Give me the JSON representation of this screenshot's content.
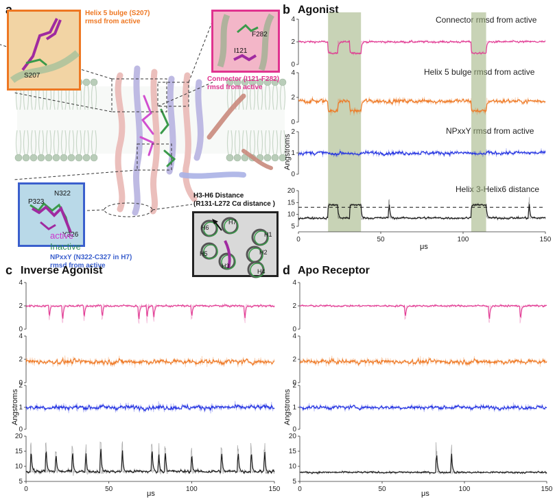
{
  "panel_a": {
    "letter": "a",
    "inset_helix5": {
      "title": "Helix 5 bulge (S207)",
      "subtitle": "rmsd from active",
      "residue": "S207",
      "color": "#ee7722"
    },
    "inset_connector": {
      "title": "Connector (I121-F282)",
      "subtitle": "rmsd from active",
      "res1": "F282",
      "res2": "I121",
      "color": "#e0338f"
    },
    "inset_npxxy": {
      "title": "NPxxY (N322-C327 in H7)",
      "subtitle": "rmsd from active",
      "res1": "P323",
      "res2": "N322",
      "res3": "Y326",
      "color": "#3a5fcd"
    },
    "inset_h3h6": {
      "title": "H3-H6 Distance",
      "subtitle": "(R131-L272 Cα distance )",
      "helices": [
        "H6",
        "H7",
        "H1",
        "H5",
        "H2",
        "H3",
        "H4"
      ]
    },
    "legend": {
      "active": "active",
      "inactive": "Inactive",
      "active_color": "#cc33cc",
      "inactive_color": "#2e8b57"
    }
  },
  "panel_b": {
    "letter": "b",
    "title": "Agonist",
    "labels": [
      "Connector rmsd from active",
      "Helix 5 bulge rmsd from active",
      "NPxxY rmsd from active",
      "Helix 3-Helix6 distance"
    ],
    "ylabel": "Angstroms",
    "xunit": "μs",
    "xticks": [
      "0",
      "50",
      "100",
      "150"
    ],
    "highlight_color": "#9aae7a"
  },
  "panel_c": {
    "letter": "c",
    "title": "Inverse Agonist",
    "ylabel": "Angstroms",
    "xunit": "μs",
    "xticks": [
      "0",
      "50",
      "100",
      "150"
    ]
  },
  "panel_d": {
    "letter": "d",
    "title": "Apo Receptor",
    "ylabel": "Angstroms",
    "xunit": "μs",
    "xticks": [
      "0",
      "50",
      "100",
      "150"
    ]
  },
  "chart_data": [
    {
      "type": "line",
      "title": "Agonist",
      "ylabel": "Angstroms",
      "xlabel": "μs",
      "xlim": [
        0,
        150
      ],
      "highlight_ranges_us": [
        [
          18,
          38
        ],
        [
          105,
          114
        ]
      ],
      "series": [
        {
          "name": "Connector rmsd from active",
          "color": "#e0338f",
          "ylim": [
            0,
            4
          ],
          "yticks": [
            0,
            2,
            4
          ],
          "baseline": 2.0,
          "noise": 0.12,
          "event_level": 1.0,
          "spikes": [
            57,
            140
          ]
        },
        {
          "name": "Helix 5 bulge rmsd from active",
          "color": "#ee7722",
          "ylim": [
            0,
            4
          ],
          "yticks": [
            0,
            2,
            4
          ],
          "baseline": 1.7,
          "noise": 0.25,
          "event_level": 0.9,
          "spikes": [
            135
          ]
        },
        {
          "name": "NPxxY rmsd from active",
          "color": "#1f2ee0",
          "ylim": [
            0,
            2
          ],
          "yticks": [
            0,
            1,
            2
          ],
          "baseline": 1.0,
          "noise": 0.12,
          "event_level": 0.95,
          "spikes": []
        },
        {
          "name": "Helix 3-Helix6 distance",
          "color": "#111111",
          "ylim": [
            5,
            20
          ],
          "yticks": [
            5,
            10,
            15,
            20
          ],
          "baseline": 8.5,
          "noise": 0.6,
          "event_level": 14,
          "dashed_y": 13,
          "spikes": [
            55,
            140
          ]
        }
      ]
    },
    {
      "type": "line",
      "title": "Inverse Agonist",
      "ylabel": "Angstroms",
      "xlabel": "μs",
      "xlim": [
        0,
        150
      ],
      "series": [
        {
          "color": "#e0338f",
          "ylim": [
            0,
            4
          ],
          "yticks": [
            0,
            2,
            4
          ],
          "baseline": 2.0,
          "noise": 0.12,
          "dips": [
            14,
            22,
            35,
            46,
            68,
            73,
            77,
            100,
            132
          ]
        },
        {
          "color": "#ee7722",
          "ylim": [
            0,
            4
          ],
          "yticks": [
            0,
            2,
            4
          ],
          "baseline": 1.8,
          "noise": 0.3,
          "dips": []
        },
        {
          "color": "#1f2ee0",
          "ylim": [
            0,
            2
          ],
          "yticks": [
            0,
            1,
            2
          ],
          "baseline": 1.0,
          "noise": 0.15,
          "dips": []
        },
        {
          "color": "#111111",
          "ylim": [
            5,
            20
          ],
          "yticks": [
            5,
            10,
            15,
            20
          ],
          "baseline": 8.3,
          "noise": 0.7,
          "spikes": [
            3,
            12,
            18,
            28,
            36,
            45,
            58,
            76,
            80,
            84,
            100,
            118,
            128,
            136,
            144
          ]
        }
      ]
    },
    {
      "type": "line",
      "title": "Apo Receptor",
      "ylabel": "Angstroms",
      "xlabel": "μs",
      "xlim": [
        0,
        150
      ],
      "series": [
        {
          "color": "#e0338f",
          "ylim": [
            0,
            4
          ],
          "yticks": [
            0,
            2,
            4
          ],
          "baseline": 2.0,
          "noise": 0.1,
          "dips": [
            64,
            115,
            134
          ]
        },
        {
          "color": "#ee7722",
          "ylim": [
            0,
            4
          ],
          "yticks": [
            0,
            2,
            4
          ],
          "baseline": 1.8,
          "noise": 0.28,
          "dips": []
        },
        {
          "color": "#1f2ee0",
          "ylim": [
            0,
            2
          ],
          "yticks": [
            0,
            1,
            2
          ],
          "baseline": 1.0,
          "noise": 0.12,
          "dips": []
        },
        {
          "color": "#111111",
          "ylim": [
            5,
            20
          ],
          "yticks": [
            5,
            10,
            15,
            20
          ],
          "baseline": 8.0,
          "noise": 0.4,
          "spikes": [
            83,
            92
          ]
        }
      ]
    }
  ]
}
